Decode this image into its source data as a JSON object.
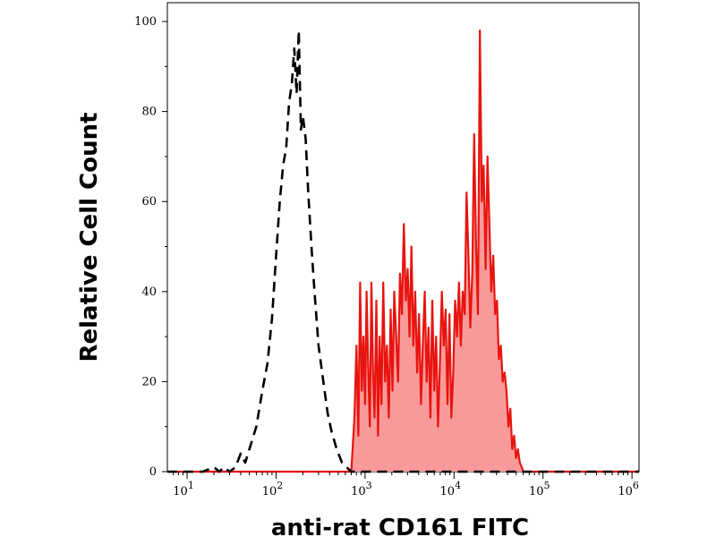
{
  "chart_data": {
    "type": "area",
    "xlabel": "anti-rat CD161 FITC",
    "ylabel": "Relative Cell Count",
    "x_scale": "log",
    "xlim": [
      6,
      1200000
    ],
    "ylim": [
      0,
      100
    ],
    "y_ticks": [
      {
        "value": 0,
        "label": "0"
      },
      {
        "value": 20,
        "label": "20"
      },
      {
        "value": 40,
        "label": "40"
      },
      {
        "value": 60,
        "label": "60"
      },
      {
        "value": 80,
        "label": "80"
      },
      {
        "value": 100,
        "label": "100"
      }
    ],
    "x_ticks": [
      {
        "value": 10,
        "base": "10",
        "exp": "1"
      },
      {
        "value": 100,
        "base": "10",
        "exp": "2"
      },
      {
        "value": 1000,
        "base": "10",
        "exp": "3"
      },
      {
        "value": 10000,
        "base": "10",
        "exp": "4"
      },
      {
        "value": 100000,
        "base": "10",
        "exp": "5"
      },
      {
        "value": 1000000,
        "base": "10",
        "exp": "6"
      }
    ],
    "grid": false,
    "legend": "none",
    "colors": {
      "stained_line": "#e8140f",
      "stained_fill": "#f99a9a",
      "control_line": "#000000"
    },
    "series": [
      {
        "style": "dashed",
        "x": [
          6,
          15,
          20,
          23,
          26,
          30,
          35,
          40,
          45,
          52,
          60,
          70,
          80,
          90,
          100,
          110,
          120,
          130,
          140,
          150,
          160,
          170,
          180,
          190,
          200,
          215,
          230,
          250,
          270,
          300,
          340,
          380,
          420,
          480,
          550,
          620,
          700,
          800,
          1200000
        ],
        "y": [
          0,
          0,
          1,
          0,
          1,
          0,
          1,
          4,
          2,
          6,
          10,
          18,
          24,
          34,
          48,
          60,
          68,
          72,
          82,
          86,
          94,
          84,
          98,
          76,
          79,
          74,
          62,
          50,
          40,
          28,
          20,
          13,
          9,
          5,
          2,
          1,
          0,
          0,
          0
        ]
      },
      {
        "style": "solid-filled",
        "x": [
          6,
          700,
          760,
          800,
          840,
          880,
          920,
          960,
          1000,
          1040,
          1080,
          1130,
          1180,
          1230,
          1280,
          1340,
          1400,
          1460,
          1530,
          1600,
          1680,
          1760,
          1850,
          1940,
          2030,
          2130,
          2240,
          2350,
          2470,
          2600,
          2730,
          2870,
          3010,
          3160,
          3320,
          3490,
          3660,
          3850,
          4040,
          4250,
          4460,
          4690,
          4920,
          5170,
          5430,
          5700,
          5990,
          6290,
          6610,
          6940,
          7290,
          7660,
          8050,
          8450,
          8880,
          9330,
          9800,
          10290,
          10810,
          11360,
          11930,
          12530,
          13160,
          13830,
          14530,
          15260,
          16030,
          16840,
          17690,
          18580,
          19520,
          20500,
          21540,
          22630,
          23770,
          24970,
          26230,
          27550,
          28940,
          30400,
          31940,
          33550,
          35250,
          37030,
          38890,
          40860,
          42920,
          45090,
          47360,
          49750,
          52270,
          54900,
          57680,
          60000,
          1200000
        ],
        "y": [
          0,
          0,
          12,
          28,
          8,
          42,
          18,
          30,
          15,
          40,
          25,
          10,
          42,
          22,
          12,
          38,
          8,
          30,
          15,
          42,
          20,
          28,
          12,
          36,
          18,
          40,
          30,
          20,
          44,
          35,
          55,
          38,
          45,
          30,
          50,
          28,
          40,
          22,
          35,
          15,
          28,
          40,
          20,
          32,
          12,
          38,
          18,
          30,
          10,
          24,
          40,
          28,
          36,
          15,
          35,
          12,
          22,
          38,
          30,
          42,
          28,
          40,
          35,
          62,
          48,
          32,
          44,
          75,
          50,
          35,
          98,
          60,
          68,
          45,
          70,
          55,
          40,
          48,
          35,
          38,
          25,
          28,
          20,
          22,
          18,
          10,
          14,
          5,
          8,
          3,
          5,
          2,
          1,
          0,
          0
        ]
      }
    ]
  }
}
